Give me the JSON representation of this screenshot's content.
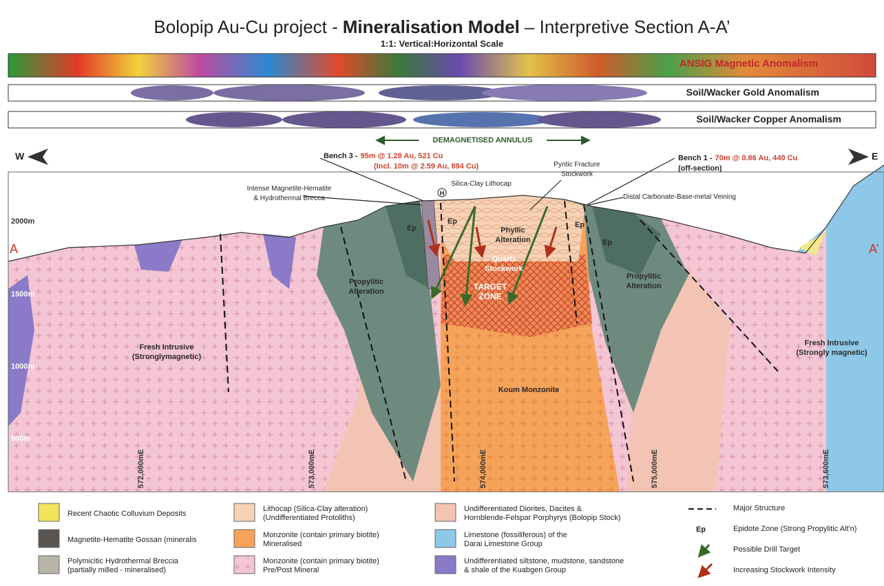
{
  "header": {
    "title_prefix": "Bolopip Au-Cu project -",
    "title_bold": "Mineralisation Model",
    "title_suffix": "– Interpretive Section A-A’",
    "subtitle": "1:1: Vertical:Horizontal Scale"
  },
  "anomaly_bands": [
    "ANSIG Magnetic Anomalism",
    "Soil/Wacker Gold Anomalism",
    "Soil/Wacker Copper Anomalism"
  ],
  "section": {
    "annulus": "DEMAGNETISED ANNULUS",
    "west": "W",
    "east": "E",
    "start": "A",
    "end": "A’",
    "elevations": [
      "2000m",
      "1500m",
      "1000m",
      "500m"
    ],
    "eastings": [
      "572,000mE",
      "573,000mE",
      "574,000mE",
      "575,000mE",
      "573,600mE"
    ]
  },
  "callouts": {
    "bench3_label": "Bench 3 -",
    "bench3_result": "95m @ 1.28 Au, 521 Cu",
    "bench3_incl": "(Incl. 10m @ 2.59 Au, 894 Cu)",
    "bench1_label": "Bench 1 -",
    "bench1_result": "70m @ 0.86 Au, 440 Cu",
    "bench1_note": "(off-section)",
    "pyritic": [
      "Pyritic Fracture",
      "Stockwork"
    ],
    "lithocap": "Silica-Clay Lithocap",
    "hydro": "H",
    "breccia": [
      "Intense Magnetite-Hematite",
      "& Hydrothermal Brecca"
    ],
    "distal": "Distal Carbonate-Base-metal Veining"
  },
  "zones": {
    "ep": [
      "Ep",
      "Ep",
      "Ep",
      "Ep"
    ],
    "phyllic": [
      "Phyllic",
      "Alteration"
    ],
    "quartz": [
      "Quartz",
      "Stockwork"
    ],
    "target": [
      "TARGET",
      "ZONE"
    ],
    "propylitic_left": [
      "Propylitic",
      "Alteration"
    ],
    "propylitic_right": [
      "Propylitic",
      "Alteration"
    ],
    "fresh_left": [
      "Fresh Intrusive",
      "(Stronglymagnetic)"
    ],
    "fresh_right": [
      "Fresh Intrusive",
      "(Strongly magnetic)"
    ],
    "koum": "Koum Monzonite"
  },
  "legend": [
    {
      "lines": [
        "Recent Chaotic Colluvium Deposits"
      ]
    },
    {
      "lines": [
        "Magnetite-Hematite Gossan (mineralis"
      ]
    },
    {
      "lines": [
        "Polymicitic Hydrothermal Breccia",
        "(partially milled - mineralised)"
      ]
    },
    {
      "lines": [
        "Lithocap (Silica-Clay alteration)",
        "(Undifferentiated Protoliths)"
      ]
    },
    {
      "lines": [
        "Monzonite (contain primary biotite)",
        "Mineralised"
      ]
    },
    {
      "lines": [
        "Monzonite (contain primary biotite)",
        "Pre/Post Mineral"
      ]
    },
    {
      "lines": [
        "Undifferentiated Diorites, Dacites &",
        "Hornblende-Felspar Porphyrys (Bolopip Stock)"
      ]
    },
    {
      "lines": [
        "Limestone (fossiliferous) of the",
        "Darai Limestone Group"
      ]
    },
    {
      "lines": [
        "Undifferentiated siltstone, mudstone, sandstone",
        "& shale of the Kuabgen Group"
      ]
    },
    {
      "lines": [
        "Major Structure"
      ]
    },
    {
      "symbol": "Ep",
      "lines": [
        "Epidote Zone (Strong Propylitic Alt'n)"
      ]
    },
    {
      "lines": [
        "Possible Drill Target"
      ]
    },
    {
      "lines": [
        "Increasing Stockwork Intensity"
      ]
    }
  ]
}
